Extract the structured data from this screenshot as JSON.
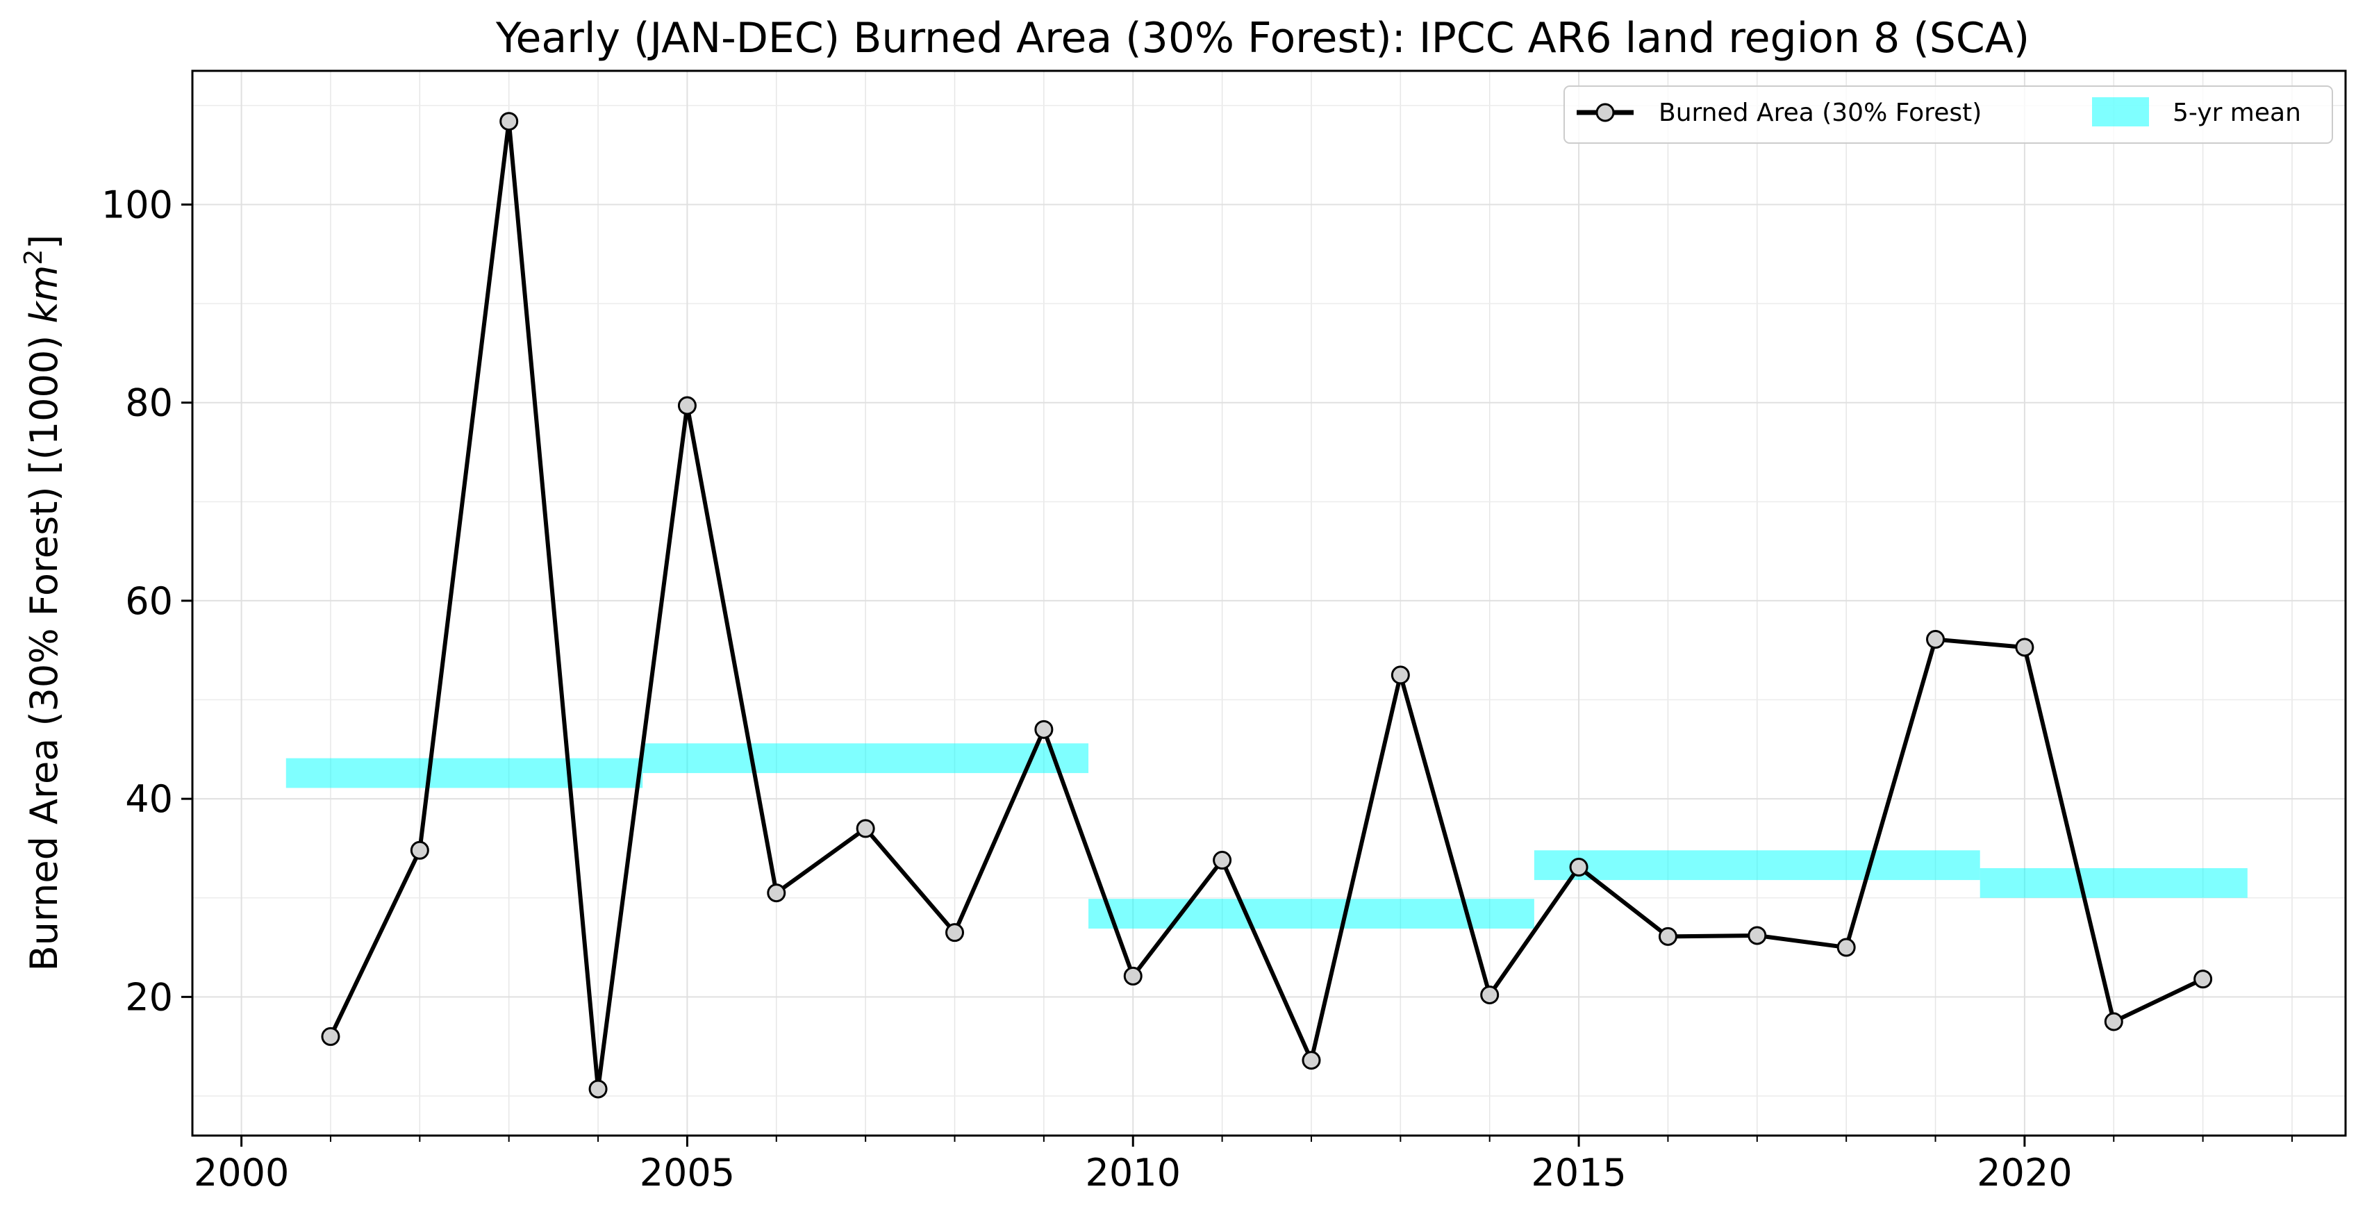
{
  "chart_data": {
    "type": "line",
    "title": "Yearly (JAN-DEC) Burned Area (30% Forest): IPCC AR6 land region 8 (SCA)",
    "ylabel_main": "Burned Area (30% Forest) [(1000) ",
    "ylabel_unit": "km",
    "ylabel_exp": "2",
    "ylabel_end": "]",
    "xlim": [
      1999.45,
      2023.6
    ],
    "ylim": [
      6,
      113.5
    ],
    "xticks": [
      2000,
      2005,
      2010,
      2015,
      2020
    ],
    "xtick_labels": [
      "2000",
      "2005",
      "2010",
      "2015",
      "2020"
    ],
    "yticks": [
      20,
      40,
      60,
      80,
      100
    ],
    "ytick_labels": [
      "20",
      "40",
      "60",
      "80",
      "100"
    ],
    "grid": true,
    "legend_position": "top-right",
    "series": [
      {
        "name": "Burned Area (30% Forest)",
        "color": "#000000",
        "marker_fill": "#d3d3d3",
        "x": [
          2001,
          2002,
          2003,
          2004,
          2005,
          2006,
          2007,
          2008,
          2009,
          2010,
          2011,
          2012,
          2013,
          2014,
          2015,
          2016,
          2017,
          2018,
          2019,
          2020,
          2021,
          2022
        ],
        "y": [
          16.0,
          34.8,
          108.4,
          10.7,
          79.7,
          30.5,
          37.0,
          26.5,
          47.0,
          22.1,
          33.8,
          13.6,
          52.5,
          20.2,
          33.1,
          26.1,
          26.2,
          25.0,
          56.1,
          55.3,
          17.5,
          21.8
        ]
      }
    ],
    "mean_bands": {
      "name": "5-yr mean",
      "color": "#00ffff",
      "opacity": 0.5,
      "segments": [
        {
          "x0": 2000.5,
          "x1": 2004.5,
          "y": 42.6
        },
        {
          "x0": 2004.5,
          "x1": 2009.5,
          "y": 44.1
        },
        {
          "x0": 2009.5,
          "x1": 2014.5,
          "y": 28.4
        },
        {
          "x0": 2014.5,
          "x1": 2019.5,
          "y": 33.3
        },
        {
          "x0": 2019.5,
          "x1": 2022.5,
          "y": 31.5
        }
      ]
    }
  }
}
